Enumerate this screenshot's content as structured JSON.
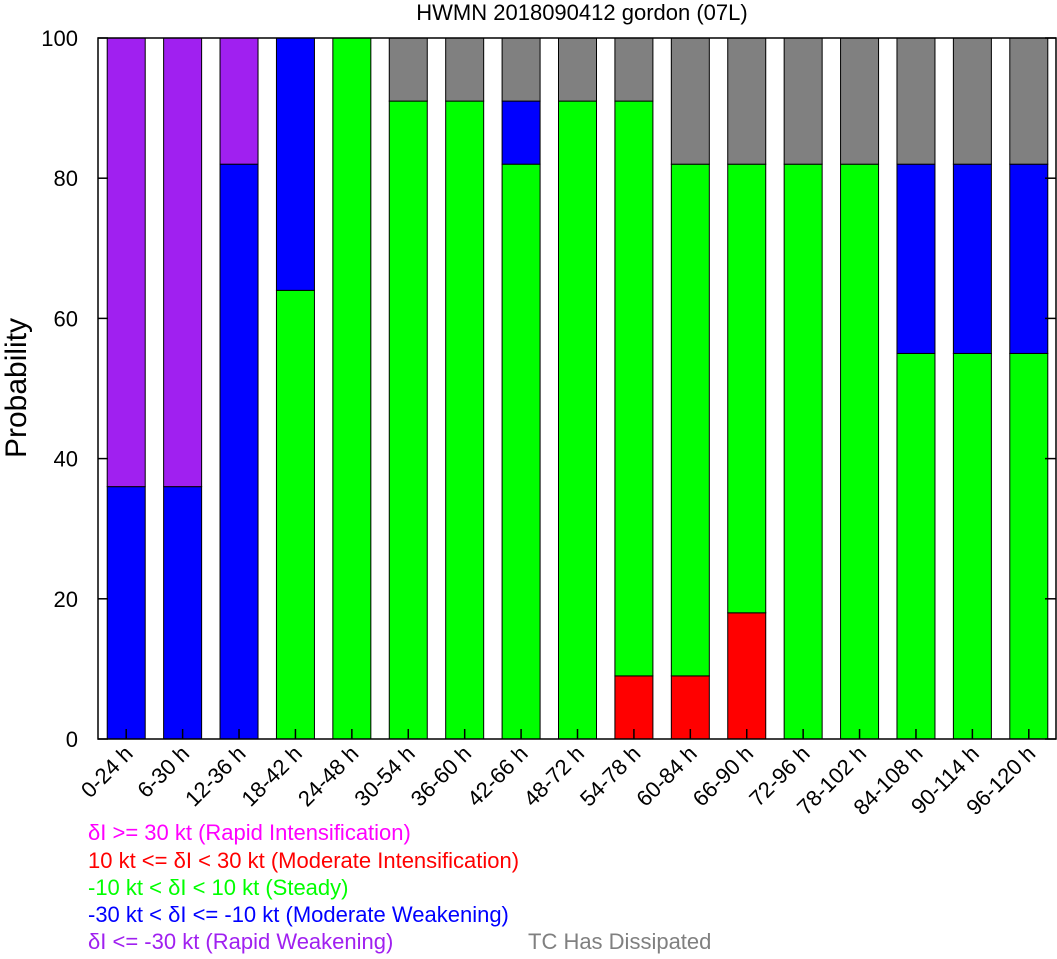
{
  "chart_data": {
    "type": "bar",
    "stacked": true,
    "title": "HWMN 2018090412 gordon (07L)",
    "ylabel": "Probability",
    "xlabel": "",
    "ylim": [
      0,
      100
    ],
    "yticks": [
      0,
      20,
      40,
      60,
      80,
      100
    ],
    "categories": [
      "0-24 h",
      "6-30 h",
      "12-36 h",
      "18-42 h",
      "24-48 h",
      "30-54 h",
      "36-60 h",
      "42-66 h",
      "48-72 h",
      "54-78 h",
      "60-84 h",
      "66-90 h",
      "72-96 h",
      "78-102 h",
      "84-108 h",
      "90-114 h",
      "96-120 h"
    ],
    "series": [
      {
        "name": "δI <= -30 kt (Rapid Weakening)",
        "color": "#a020f0",
        "values": [
          64,
          64,
          18,
          0,
          0,
          0,
          0,
          0,
          0,
          0,
          0,
          0,
          0,
          0,
          0,
          0,
          0
        ]
      },
      {
        "name": "-30 kt < δI <= -10 kt (Moderate Weakening)",
        "color": "#0000ff",
        "values": [
          36,
          36,
          82,
          36,
          0,
          0,
          0,
          9,
          0,
          0,
          0,
          0,
          0,
          0,
          27,
          27,
          27
        ]
      },
      {
        "name": "-10 kt < δI < 10 kt (Steady)",
        "color": "#00ff00",
        "values": [
          0,
          0,
          0,
          64,
          100,
          91,
          91,
          82,
          91,
          82,
          73,
          64,
          82,
          82,
          55,
          55,
          55
        ]
      },
      {
        "name": "10 kt <= δI < 30 kt (Moderate Intensification)",
        "color": "#ff0000",
        "values": [
          0,
          0,
          0,
          0,
          0,
          0,
          0,
          0,
          0,
          9,
          9,
          18,
          0,
          0,
          0,
          0,
          0
        ]
      },
      {
        "name": "δI >= 30 kt (Rapid Intensification)",
        "color": "#ff00ff",
        "values": [
          0,
          0,
          0,
          0,
          0,
          0,
          0,
          0,
          0,
          0,
          0,
          0,
          0,
          0,
          0,
          0,
          0
        ]
      },
      {
        "name": "TC Has Dissipated",
        "color": "#808080",
        "values": [
          0,
          0,
          0,
          0,
          0,
          9,
          9,
          9,
          9,
          9,
          18,
          18,
          18,
          18,
          18,
          18,
          18
        ]
      }
    ],
    "stack_order_bottom_to_top": [
      3,
      2,
      1,
      0,
      4,
      5
    ],
    "legend_order_top_to_bottom": [
      4,
      3,
      2,
      1,
      0
    ]
  }
}
